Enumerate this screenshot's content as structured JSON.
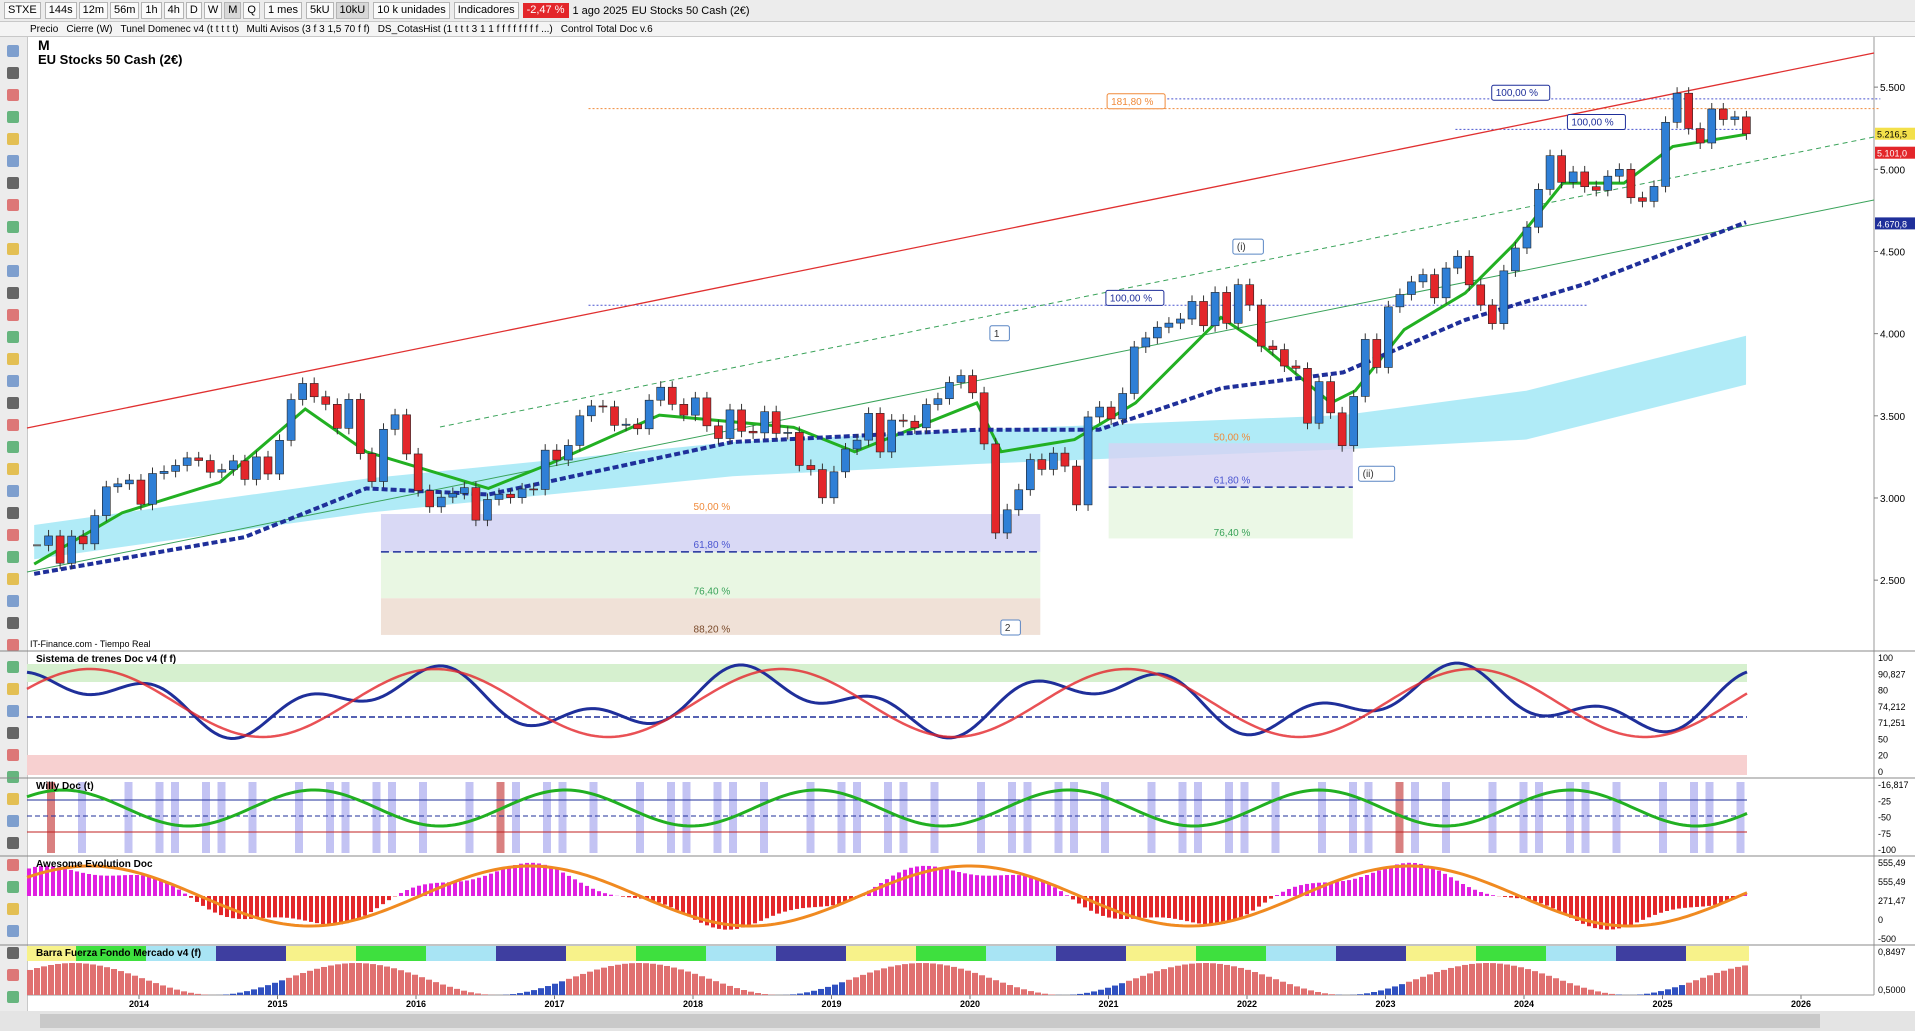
{
  "toolbar": {
    "symbol": "STXE",
    "intervals": [
      "144s",
      "12m",
      "56m",
      "1h",
      "4h",
      "D",
      "W",
      "M",
      "Q"
    ],
    "period": "1 mes",
    "units": [
      "5kU",
      "10kU"
    ],
    "quantity": "10 k unidades",
    "indicators": "Indicadores",
    "change": "-2,47 %",
    "date": "1 ago 2025",
    "instrument": "EU Stocks 50 Cash (2€)"
  },
  "indicator_tabs": [
    "Precio",
    "Cierre (W)",
    "Tunel Domenec v4 (t t t t t)",
    "Multi Avisos (3 f 3 1,5 70 f f)",
    "DS_CotasHist (1 t t t 3 1 1 f f f f f f f f ...)",
    "Control Total Doc v.6"
  ],
  "chart_data": {
    "type": "candlestick",
    "title": "M",
    "subtitle": "EU Stocks 50 Cash (2€)",
    "source": "IT-Finance.com - Tiempo Real",
    "values": [
      2712,
      2769,
      2603,
      2768,
      2721,
      2893,
      3068,
      3086,
      3109,
      2962,
      3149,
      3162,
      3198,
      3244,
      3228,
      3157,
      3172,
      3226,
      3113,
      3250,
      3146,
      3351,
      3599,
      3697,
      3616,
      3570,
      3424,
      3600,
      3270,
      3100,
      3418,
      3506,
      3268,
      3045,
      2946,
      3005,
      3028,
      3063,
      2865,
      2991,
      3023,
      3002,
      3055,
      3052,
      3291,
      3231,
      3320,
      3500,
      3560,
      3555,
      3442,
      3449,
      3421,
      3595,
      3674,
      3570,
      3504,
      3609,
      3439,
      3362,
      3536,
      3406,
      3396,
      3525,
      3393,
      3399,
      3198,
      3173,
      3001,
      3159,
      3298,
      3352,
      3515,
      3280,
      3474,
      3467,
      3427,
      3569,
      3604,
      3703,
      3745,
      3640,
      3329,
      2787,
      2928,
      3050,
      3234,
      3174,
      3273,
      3194,
      2958,
      3493,
      3553,
      3481,
      3636,
      3919,
      3974,
      4039,
      4064,
      4089,
      4196,
      4048,
      4251,
      4063,
      4298,
      4174,
      3924,
      3903,
      3803,
      3789,
      3455,
      3708,
      3518,
      3318,
      3618,
      3965,
      3794,
      4163,
      4238,
      4315,
      4359,
      4218,
      4399,
      4471,
      4297,
      4174,
      4061,
      4382,
      4521,
      4648,
      4878,
      5083,
      4921,
      4984,
      4894,
      4872,
      4958,
      5000,
      4827,
      4805,
      4896,
      5286,
      5463,
      5248,
      5160,
      5367,
      5303,
      5319,
      5216
    ],
    "up_color": "#2f7fd6",
    "down_color": "#e3262a",
    "ylim": [
      2075,
      5805
    ],
    "yticks": [
      {
        "value": 2500,
        "label": "2.500"
      },
      {
        "value": 3000,
        "label": "3.000"
      },
      {
        "value": 3500,
        "label": "3.500"
      },
      {
        "value": 4000,
        "label": "4.000"
      },
      {
        "value": 4500,
        "label": "4.500"
      },
      {
        "value": 5000,
        "label": "5.000"
      },
      {
        "value": 5500,
        "label": "5.500"
      }
    ],
    "xticks": [
      2014,
      2015,
      2016,
      2017,
      2018,
      2019,
      2020,
      2021,
      2022,
      2023,
      2024,
      2025,
      2026
    ],
    "price_labels": [
      {
        "value": 5216.5,
        "label": "5.216,5",
        "color": "#f3e04a"
      },
      {
        "value": 5101,
        "label": "5.101,0",
        "color": "#e3262a"
      },
      {
        "value": 4670.8,
        "label": "4.670,8",
        "color": "#1f2f9a"
      }
    ],
    "annotations": [
      "181,80 %",
      "100,00 %",
      "100,00 %",
      "100,00 %",
      "50,00 %",
      "61,80 %",
      "76,40 %",
      "88,20 %",
      "50,00 %",
      "61,80 %",
      "76,40 %",
      "1",
      "2",
      "(i)",
      "(ii)"
    ]
  },
  "panels": [
    {
      "title": "Sistema de trenes Doc v4 (f f)",
      "labels": [
        "100",
        "90,827",
        "80",
        "74,212",
        "71,251",
        "50",
        "20",
        "0"
      ]
    },
    {
      "title": "Willy Doc (t)",
      "labels": [
        "-16,817",
        "-25",
        "-50",
        "-75",
        "-100"
      ]
    },
    {
      "title": "Awesome Evolution Doc",
      "labels": [
        "555,49",
        "555,49",
        "271,47",
        "0",
        "-500"
      ]
    },
    {
      "title": "Barra Fuerza Fondo Mercado v4 (f)",
      "labels": [
        "0,8497",
        "0,5000"
      ]
    }
  ]
}
